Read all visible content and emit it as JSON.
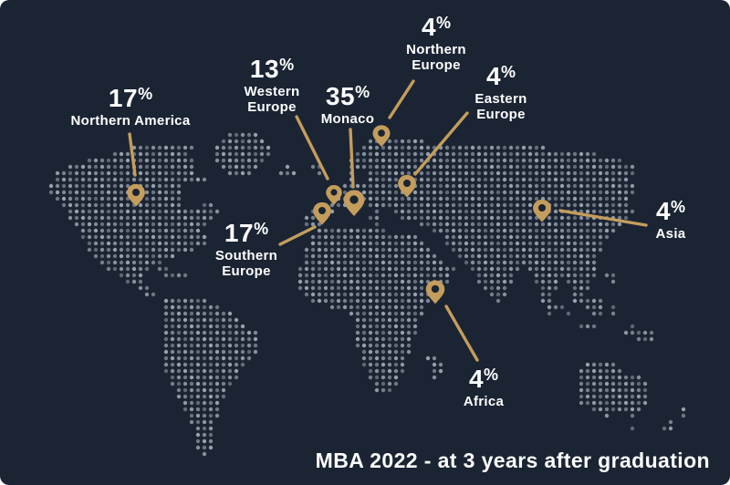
{
  "colors": {
    "card_background": "#1b2433",
    "dot": "#97a0ac",
    "accent_gold": "#c49d5c",
    "text": "#ffffff"
  },
  "percent_symbol": "%",
  "regions": [
    {
      "id": "northern-america",
      "value": "17",
      "name": "Northern America"
    },
    {
      "id": "western-europe",
      "value": "13",
      "name": "Western Europe"
    },
    {
      "id": "monaco",
      "value": "35",
      "name": "Monaco"
    },
    {
      "id": "northern-europe",
      "value": "4",
      "name": "Northern Europe"
    },
    {
      "id": "eastern-europe",
      "value": "4",
      "name": "Eastern Europe"
    },
    {
      "id": "southern-europe",
      "value": "17",
      "name": "Southern Europe"
    },
    {
      "id": "asia",
      "value": "4",
      "name": "Asia"
    },
    {
      "id": "africa",
      "value": "4",
      "name": "Africa"
    }
  ],
  "caption": "MBA 2022 - at 3 years after graduation",
  "chart_data": {
    "type": "map",
    "title": "MBA 2022 - at 3 years after graduation",
    "unit": "%",
    "categories": [
      "Northern America",
      "Western Europe",
      "Monaco",
      "Northern Europe",
      "Eastern Europe",
      "Southern Europe",
      "Asia",
      "Africa"
    ],
    "values": [
      17,
      13,
      35,
      4,
      4,
      17,
      4,
      4
    ],
    "legend_position": "none",
    "notes": "Percent of MBA 2022 graduates located in each world region, shown as gold pins on a dotted world map"
  }
}
